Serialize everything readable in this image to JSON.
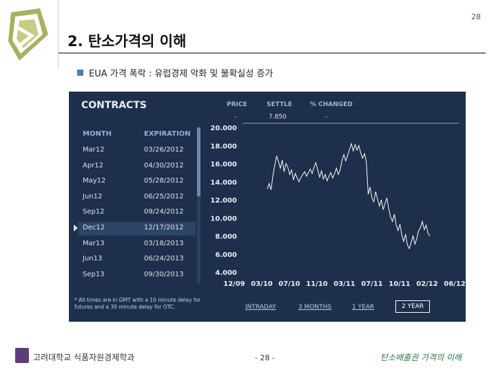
{
  "page_number_top": "28",
  "title": "2. 탄소가격의 이해",
  "bullet": "EUA 가격 폭락 : 유럽경제 악화 및 불확실성 증가",
  "panel": {
    "title": "CONTRACTS",
    "headers": {
      "price": "PRICE",
      "settle": "SETTLE",
      "changed": "% CHANGED"
    },
    "values": {
      "price": "-",
      "settle": "7.850",
      "changed": "-"
    },
    "columns": {
      "month": "MONTH",
      "expiration": "EXPIRATION"
    },
    "rows": [
      {
        "month": "Mar12",
        "expiration": "03/26/2012"
      },
      {
        "month": "Apr12",
        "expiration": "04/30/2012"
      },
      {
        "month": "May12",
        "expiration": "05/28/2012"
      },
      {
        "month": "Jun12",
        "expiration": "06/25/2012"
      },
      {
        "month": "Sep12",
        "expiration": "09/24/2012"
      },
      {
        "month": "Dec12",
        "expiration": "12/17/2012",
        "selected": true
      },
      {
        "month": "Mar13",
        "expiration": "03/18/2013"
      },
      {
        "month": "Jun13",
        "expiration": "06/24/2013"
      },
      {
        "month": "Sep13",
        "expiration": "09/30/2013"
      }
    ],
    "footnote": "* All times are in GMT with a 10 minute delay for futures and a 30 minute delay for OTC.",
    "ranges": [
      "INTRADAY",
      "3 MONTHS",
      "1 YEAR",
      "2 YEAR"
    ],
    "active_range": "2 YEAR"
  },
  "chart_data": {
    "type": "line",
    "ylim": [
      4,
      20
    ],
    "yticks": [
      "20.000",
      "18.000",
      "16.000",
      "14.000",
      "12.000",
      "10.000",
      "8.000",
      "6.000",
      "4.000"
    ],
    "xticks": [
      "12/09",
      "03/10",
      "07/10",
      "11/10",
      "03/11",
      "07/11",
      "10/11",
      "02/12",
      "06/12"
    ],
    "series": [
      {
        "values": [
          13.2,
          13.8,
          13.1,
          14.6,
          15.9,
          16.8,
          16.2,
          15.5,
          16.4,
          15.1,
          16.0,
          15.6,
          14.8,
          15.3,
          14.2,
          14.9,
          14.4,
          14.0,
          14.5,
          14.8,
          15.1,
          14.6,
          15.0,
          15.4,
          14.9,
          15.6,
          16.1,
          15.3,
          14.5,
          15.2,
          14.3,
          14.8,
          14.1,
          14.6,
          15.0,
          14.4,
          14.9,
          15.5,
          14.8,
          15.3,
          16.4,
          17.0,
          16.3,
          16.9,
          17.6,
          18.2,
          17.4,
          18.1,
          17.5,
          18.0,
          17.2,
          16.6,
          17.1,
          16.2,
          12.6,
          13.4,
          12.2,
          11.8,
          12.9,
          12.1,
          11.3,
          12.0,
          10.9,
          11.6,
          12.2,
          11.0,
          10.1,
          9.6,
          10.4,
          9.2,
          8.6,
          9.3,
          8.1,
          7.4,
          8.2,
          7.0,
          6.6,
          7.3,
          8.0,
          7.1,
          7.7,
          8.6,
          8.9,
          9.6,
          8.7,
          9.2,
          8.3,
          8.0
        ]
      }
    ]
  }
}
